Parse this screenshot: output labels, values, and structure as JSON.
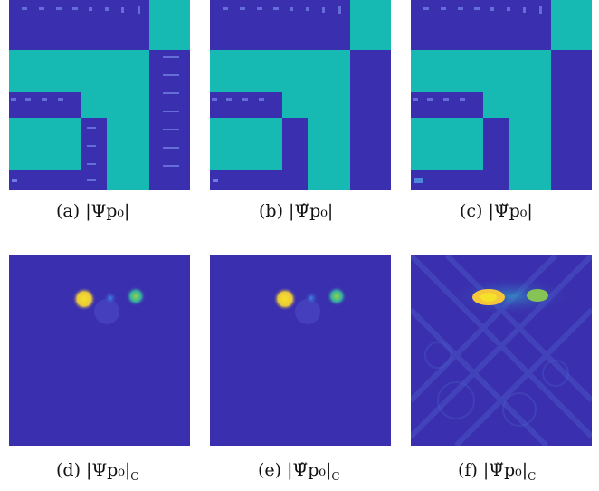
{
  "colors": {
    "background": "#3a2fae",
    "block": "#17b9b3",
    "bright": "#f5e12a",
    "mid": "#3d88e8",
    "green": "#5ec66b"
  },
  "panels": [
    {
      "tag": "(a)",
      "math": "|Ψp₀|"
    },
    {
      "tag": "(b)",
      "math": "|Ψ̃p₀|"
    },
    {
      "tag": "(c)",
      "math": "|Ψ̆p₀|"
    },
    {
      "tag": "(d)",
      "math": "|Ψp₀|",
      "sub": "C"
    },
    {
      "tag": "(e)",
      "math": "|Ψ̃p₀|",
      "sub": "C"
    },
    {
      "tag": "(f)",
      "math": "|Ψ̆p₀|",
      "sub": "C"
    }
  ]
}
